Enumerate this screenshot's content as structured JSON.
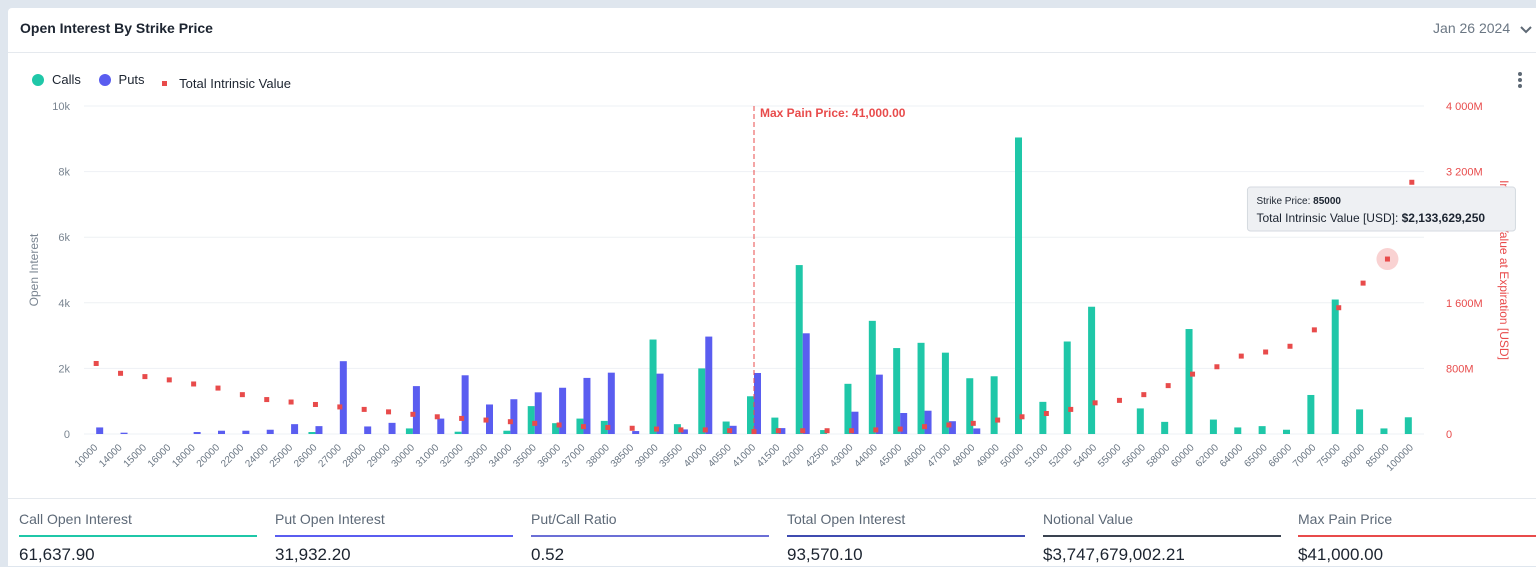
{
  "header": {
    "title": "Open Interest By Strike Price",
    "date": "Jan 26 2024"
  },
  "legend": [
    {
      "label": "Calls",
      "color": "#1fc7a8"
    },
    {
      "label": "Puts",
      "color": "#5a5df0"
    },
    {
      "label": "Total Intrinsic Value",
      "color": "#e84b4b"
    }
  ],
  "chart_data": {
    "type": "bar",
    "categories": [
      "10000",
      "14000",
      "15000",
      "16000",
      "18000",
      "20000",
      "22000",
      "24000",
      "25000",
      "26000",
      "27000",
      "28000",
      "29000",
      "30000",
      "31000",
      "32000",
      "33000",
      "34000",
      "35000",
      "36000",
      "37000",
      "38000",
      "38500",
      "39000",
      "39500",
      "40000",
      "40500",
      "41000",
      "41500",
      "42000",
      "42500",
      "43000",
      "44000",
      "45000",
      "46000",
      "47000",
      "48000",
      "49000",
      "50000",
      "51000",
      "52000",
      "54000",
      "55000",
      "56000",
      "58000",
      "60000",
      "62000",
      "64000",
      "65000",
      "66000",
      "70000",
      "75000",
      "80000",
      "85000",
      "100000"
    ],
    "series": [
      {
        "name": "Calls",
        "type": "bar",
        "color": "#1fc7a8",
        "axis": "left",
        "values": [
          0,
          0,
          0,
          0,
          0,
          0,
          0,
          0,
          0,
          60,
          0,
          0,
          0,
          170,
          0,
          70,
          0,
          100,
          850,
          330,
          470,
          400,
          0,
          2880,
          300,
          2000,
          380,
          1150,
          500,
          5150,
          120,
          1530,
          3450,
          2620,
          2780,
          2480,
          1700,
          1760,
          9040,
          980,
          2820,
          3880,
          0,
          780,
          370,
          3200,
          440,
          200,
          240,
          130,
          1190,
          4100,
          750,
          170,
          510
        ]
      },
      {
        "name": "Puts",
        "type": "bar",
        "color": "#5a5df0",
        "axis": "left",
        "values": [
          200,
          40,
          0,
          0,
          60,
          100,
          100,
          130,
          300,
          240,
          2220,
          230,
          340,
          1460,
          470,
          1790,
          900,
          1060,
          1270,
          1410,
          1710,
          1870,
          90,
          1840,
          140,
          2970,
          250,
          1860,
          180,
          3070,
          0,
          680,
          1810,
          640,
          710,
          390,
          170,
          0,
          0,
          0,
          0,
          0,
          0,
          0,
          0,
          0,
          0,
          0,
          0,
          0,
          0,
          0,
          0,
          0,
          0
        ]
      },
      {
        "name": "Total Intrinsic Value",
        "type": "scatter",
        "color": "#e84b4b",
        "axis": "right",
        "values": [
          860,
          740,
          700,
          660,
          610,
          560,
          480,
          420,
          390,
          360,
          330,
          300,
          270,
          240,
          210,
          190,
          170,
          150,
          130,
          110,
          90,
          80,
          70,
          60,
          50,
          50,
          40,
          30,
          40,
          40,
          40,
          40,
          50,
          60,
          90,
          110,
          130,
          170,
          210,
          250,
          300,
          380,
          410,
          480,
          590,
          730,
          820,
          950,
          1000,
          1070,
          1270,
          1540,
          1840,
          2133.63,
          3070
        ]
      }
    ],
    "left_axis": {
      "label": "Open Interest",
      "ticks": [
        "0",
        "2k",
        "4k",
        "6k",
        "8k",
        "10k"
      ],
      "ylim": [
        0,
        10000
      ]
    },
    "right_axis": {
      "label": "Intrinsic Value at Expiration [USD]",
      "ticks": [
        "0",
        "800M",
        "1 600M",
        "3 200M",
        "4 000M"
      ],
      "ylim": [
        0,
        4000
      ],
      "unit": "M"
    },
    "max_pain": {
      "strike": "41000",
      "label": "Max Pain Price: 41,000.00",
      "color": "#e84b4b"
    },
    "tooltip": {
      "strike_label": "Strike Price: ",
      "strike": "85000",
      "value_label": "Total Intrinsic Value [USD]: ",
      "value": "$2,133,629,250"
    },
    "grid": true,
    "legend_position": "top-left"
  },
  "metrics": [
    {
      "label": "Call Open Interest",
      "value": "61,637.90",
      "color": "#1fc7a8"
    },
    {
      "label": "Put Open Interest",
      "value": "31,932.20",
      "color": "#5a5df0"
    },
    {
      "label": "Put/Call Ratio",
      "value": "0.52",
      "color": "#6b6fd6"
    },
    {
      "label": "Total Open Interest",
      "value": "93,570.10",
      "color": "#3f4bb0"
    },
    {
      "label": "Notional Value",
      "value": "$3,747,679,002.21",
      "color": "#3a4350"
    },
    {
      "label": "Max Pain Price",
      "value": "$41,000.00",
      "color": "#e84b4b"
    }
  ]
}
